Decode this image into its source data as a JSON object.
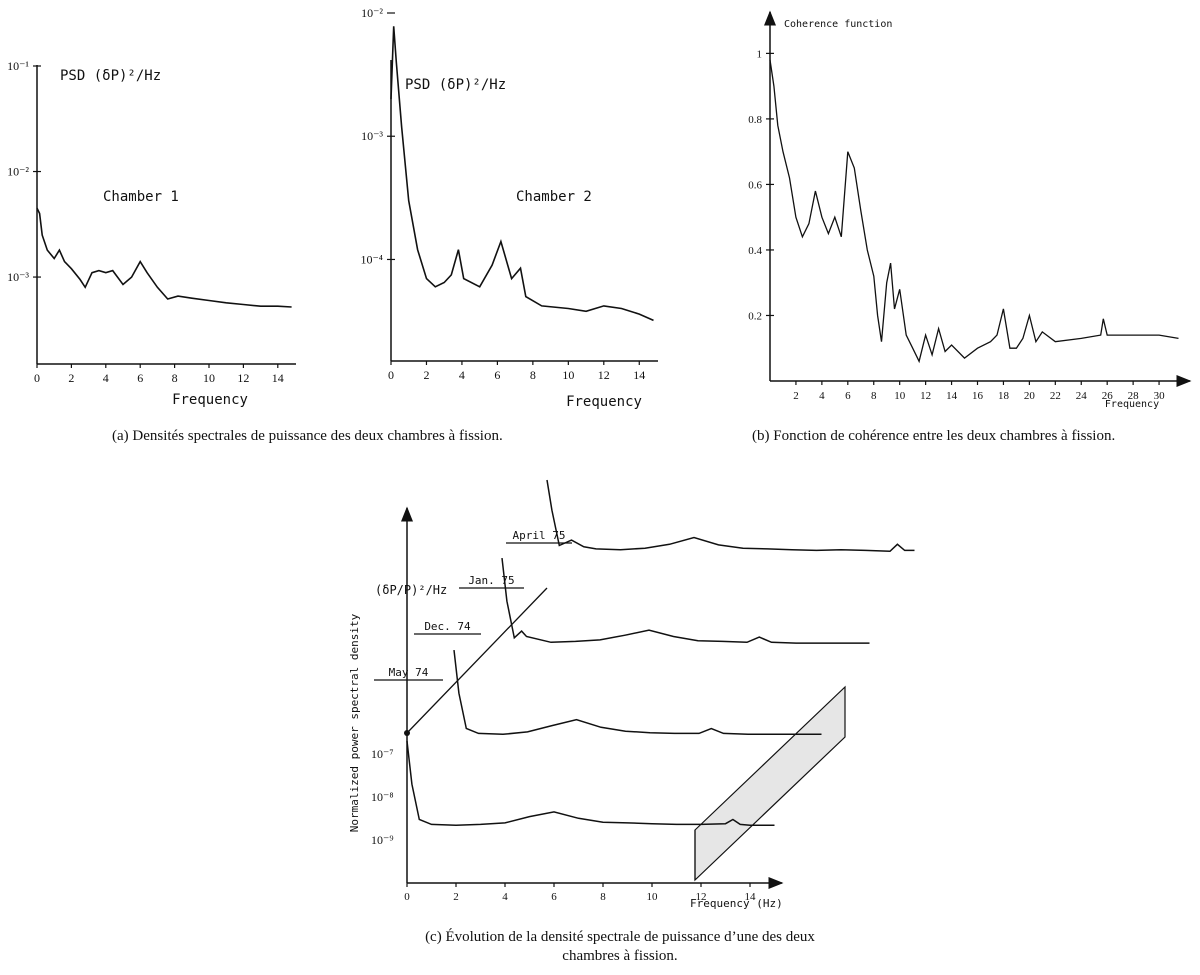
{
  "captions": {
    "a": "(a) Densités spectrales de puissance des deux chambres à fission.",
    "b": "(b) Fonction de cohérence entre les deux chambres à fission.",
    "c": "(c) Évolution de la densité spectrale de puissance d’une des deux chambres à fission."
  },
  "chart_data": [
    {
      "id": "chamber1",
      "type": "line",
      "title": "PSD (δP)²/Hz",
      "annotation": "Chamber 1",
      "xlabel": "Frequency",
      "ylabel": "",
      "xlim": [
        0,
        15
      ],
      "x_ticks": [
        "0",
        "2",
        "4",
        "6",
        "8",
        "10",
        "12",
        "14"
      ],
      "y_ticks": [
        "10⁻³",
        "10⁻²",
        "10⁻¹"
      ],
      "y_scale": "log",
      "ylim": [
        0.00015,
        0.1
      ],
      "points": [
        [
          0,
          0.0045
        ],
        [
          0.15,
          0.004
        ],
        [
          0.3,
          0.0025
        ],
        [
          0.6,
          0.0018
        ],
        [
          1,
          0.0015
        ],
        [
          1.3,
          0.0018
        ],
        [
          1.6,
          0.0014
        ],
        [
          2,
          0.0012
        ],
        [
          2.5,
          0.00095
        ],
        [
          2.8,
          0.0008
        ],
        [
          3.2,
          0.0011
        ],
        [
          3.6,
          0.00115
        ],
        [
          4,
          0.0011
        ],
        [
          4.4,
          0.00115
        ],
        [
          5,
          0.00085
        ],
        [
          5.5,
          0.001
        ],
        [
          6,
          0.0014
        ],
        [
          6.4,
          0.0011
        ],
        [
          7,
          0.0008
        ],
        [
          7.6,
          0.00062
        ],
        [
          8.2,
          0.00066
        ],
        [
          9,
          0.00063
        ],
        [
          10,
          0.0006
        ],
        [
          11,
          0.00057
        ],
        [
          12,
          0.00055
        ],
        [
          13,
          0.00053
        ],
        [
          14,
          0.00053
        ],
        [
          14.8,
          0.00052
        ]
      ]
    },
    {
      "id": "chamber2",
      "type": "line",
      "title": "PSD (δP)²/Hz",
      "annotation": "Chamber 2",
      "xlabel": "Frequency",
      "ylabel": "",
      "xlim": [
        0,
        15
      ],
      "x_ticks": [
        "0",
        "2",
        "4",
        "6",
        "8",
        "10",
        "12",
        "14"
      ],
      "y_ticks": [
        "10⁻⁴",
        "10⁻³",
        "10⁻²"
      ],
      "y_scale": "log",
      "ylim": [
        1.5e-05,
        0.01
      ],
      "points": [
        [
          0,
          0.002
        ],
        [
          0.15,
          0.0078
        ],
        [
          0.3,
          0.004
        ],
        [
          0.6,
          0.0012
        ],
        [
          1,
          0.0003
        ],
        [
          1.5,
          0.00012
        ],
        [
          2,
          7e-05
        ],
        [
          2.5,
          6e-05
        ],
        [
          3,
          6.5e-05
        ],
        [
          3.4,
          7.5e-05
        ],
        [
          3.8,
          0.00012
        ],
        [
          4.1,
          7e-05
        ],
        [
          5,
          6e-05
        ],
        [
          5.7,
          9e-05
        ],
        [
          6.2,
          0.00014
        ],
        [
          6.8,
          7e-05
        ],
        [
          7.3,
          8.5e-05
        ],
        [
          7.6,
          5e-05
        ],
        [
          8.5,
          4.2e-05
        ],
        [
          10,
          4e-05
        ],
        [
          11,
          3.8e-05
        ],
        [
          12,
          4.2e-05
        ],
        [
          13,
          4e-05
        ],
        [
          14,
          3.6e-05
        ],
        [
          14.8,
          3.2e-05
        ]
      ]
    },
    {
      "id": "coherence",
      "type": "line",
      "title": "Coherence function",
      "xlabel": "Frequency",
      "ylabel": "",
      "xlim": [
        0,
        32
      ],
      "ylim": [
        0,
        1.05
      ],
      "x_ticks": [
        "2",
        "4",
        "6",
        "8",
        "10",
        "12",
        "14",
        "16",
        "18",
        "20",
        "22",
        "24",
        "26",
        "28",
        "30"
      ],
      "y_ticks": [
        "0.2",
        "0.4",
        "0.6",
        "0.8",
        "1"
      ],
      "points": [
        [
          0,
          0.98
        ],
        [
          0.3,
          0.9
        ],
        [
          0.6,
          0.78
        ],
        [
          1,
          0.7
        ],
        [
          1.5,
          0.62
        ],
        [
          2,
          0.5
        ],
        [
          2.5,
          0.44
        ],
        [
          3,
          0.48
        ],
        [
          3.5,
          0.58
        ],
        [
          4,
          0.5
        ],
        [
          4.5,
          0.45
        ],
        [
          5,
          0.5
        ],
        [
          5.5,
          0.44
        ],
        [
          6,
          0.7
        ],
        [
          6.5,
          0.65
        ],
        [
          7,
          0.52
        ],
        [
          7.5,
          0.4
        ],
        [
          8,
          0.32
        ],
        [
          8.3,
          0.2
        ],
        [
          8.6,
          0.12
        ],
        [
          9,
          0.3
        ],
        [
          9.3,
          0.36
        ],
        [
          9.6,
          0.22
        ],
        [
          10,
          0.28
        ],
        [
          10.5,
          0.14
        ],
        [
          11,
          0.1
        ],
        [
          11.5,
          0.06
        ],
        [
          12,
          0.14
        ],
        [
          12.5,
          0.08
        ],
        [
          13,
          0.16
        ],
        [
          13.5,
          0.09
        ],
        [
          14,
          0.11
        ],
        [
          15,
          0.07
        ],
        [
          16,
          0.1
        ],
        [
          17,
          0.12
        ],
        [
          17.5,
          0.14
        ],
        [
          18,
          0.22
        ],
        [
          18.5,
          0.1
        ],
        [
          19,
          0.1
        ],
        [
          19.5,
          0.13
        ],
        [
          20,
          0.2
        ],
        [
          20.5,
          0.12
        ],
        [
          21,
          0.15
        ],
        [
          22,
          0.12
        ],
        [
          24,
          0.13
        ],
        [
          25.5,
          0.14
        ],
        [
          25.7,
          0.19
        ],
        [
          26,
          0.14
        ],
        [
          28,
          0.14
        ],
        [
          30,
          0.14
        ],
        [
          31.5,
          0.13
        ]
      ]
    },
    {
      "id": "evolution",
      "type": "line",
      "title": "",
      "units_label": "(δP/P)²/Hz",
      "xlabel": "Frequency (Hz)",
      "ylabel": "Normalized power spectral density",
      "xlim": [
        0,
        15
      ],
      "x_ticks": [
        "0",
        "2",
        "4",
        "6",
        "8",
        "10",
        "12",
        "14"
      ],
      "y_ticks": [
        "10⁻⁹",
        "10⁻⁸",
        "10⁻⁷"
      ],
      "y_scale": "log",
      "series": [
        {
          "name": "May 74",
          "points": [
            [
              0,
              2e-07
            ],
            [
              0.2,
              2e-08
            ],
            [
              0.5,
              3e-09
            ],
            [
              1,
              2.3e-09
            ],
            [
              2,
              2.2e-09
            ],
            [
              3,
              2.3e-09
            ],
            [
              4,
              2.5e-09
            ],
            [
              5,
              3.5e-09
            ],
            [
              6,
              4.5e-09
            ],
            [
              7,
              3.2e-09
            ],
            [
              8,
              2.6e-09
            ],
            [
              9,
              2.5e-09
            ],
            [
              10,
              2.4e-09
            ],
            [
              11,
              2.3e-09
            ],
            [
              12,
              2.3e-09
            ],
            [
              13,
              2.4e-09
            ],
            [
              13.3,
              3e-09
            ],
            [
              13.6,
              2.3e-09
            ],
            [
              14,
              2.2e-09
            ],
            [
              15,
              2.2e-09
            ]
          ]
        },
        {
          "name": "Dec. 74",
          "points": [
            [
              0,
              2e-06
            ],
            [
              0.2,
              2e-07
            ],
            [
              0.5,
              3e-08
            ],
            [
              1,
              2.3e-08
            ],
            [
              2,
              2.2e-08
            ],
            [
              3,
              2.5e-08
            ],
            [
              4,
              3.5e-08
            ],
            [
              5,
              4.8e-08
            ],
            [
              6,
              3.2e-08
            ],
            [
              7,
              2.6e-08
            ],
            [
              8,
              2.4e-08
            ],
            [
              9,
              2.3e-08
            ],
            [
              10,
              2.3e-08
            ],
            [
              10.5,
              3e-08
            ],
            [
              11,
              2.3e-08
            ],
            [
              12,
              2.2e-08
            ],
            [
              13,
              2.2e-08
            ],
            [
              14,
              2.2e-08
            ],
            [
              15,
              2.2e-08
            ]
          ]
        },
        {
          "name": "Jan. 75",
          "points": [
            [
              0,
              2e-05
            ],
            [
              0.2,
              2e-06
            ],
            [
              0.5,
              2.8e-07
            ],
            [
              0.8,
              4e-07
            ],
            [
              1,
              3e-07
            ],
            [
              2,
              2.2e-07
            ],
            [
              3,
              2.3e-07
            ],
            [
              4,
              2.5e-07
            ],
            [
              5,
              3.2e-07
            ],
            [
              6,
              4.2e-07
            ],
            [
              7,
              3e-07
            ],
            [
              8,
              2.4e-07
            ],
            [
              9,
              2.3e-07
            ],
            [
              10,
              2.2e-07
            ],
            [
              10.5,
              2.9e-07
            ],
            [
              11,
              2.2e-07
            ],
            [
              12,
              2.1e-07
            ],
            [
              13,
              2.1e-07
            ],
            [
              14,
              2.1e-07
            ],
            [
              15,
              2.1e-07
            ]
          ]
        },
        {
          "name": "April 75",
          "points": [
            [
              0,
              0.0002
            ],
            [
              0.2,
              2e-05
            ],
            [
              0.5,
              3e-06
            ],
            [
              1,
              4e-06
            ],
            [
              1.5,
              2.8e-06
            ],
            [
              2,
              2.5e-06
            ],
            [
              3,
              2.4e-06
            ],
            [
              4,
              2.6e-06
            ],
            [
              5,
              3.2e-06
            ],
            [
              6,
              4.6e-06
            ],
            [
              7,
              3.1e-06
            ],
            [
              8,
              2.6e-06
            ],
            [
              9,
              2.5e-06
            ],
            [
              10,
              2.4e-06
            ],
            [
              11,
              2.3e-06
            ],
            [
              12,
              2.4e-06
            ],
            [
              13,
              2.3e-06
            ],
            [
              14,
              2.2e-06
            ],
            [
              14.3,
              3.2e-06
            ],
            [
              14.6,
              2.3e-06
            ],
            [
              15,
              2.3e-06
            ]
          ]
        }
      ]
    }
  ]
}
